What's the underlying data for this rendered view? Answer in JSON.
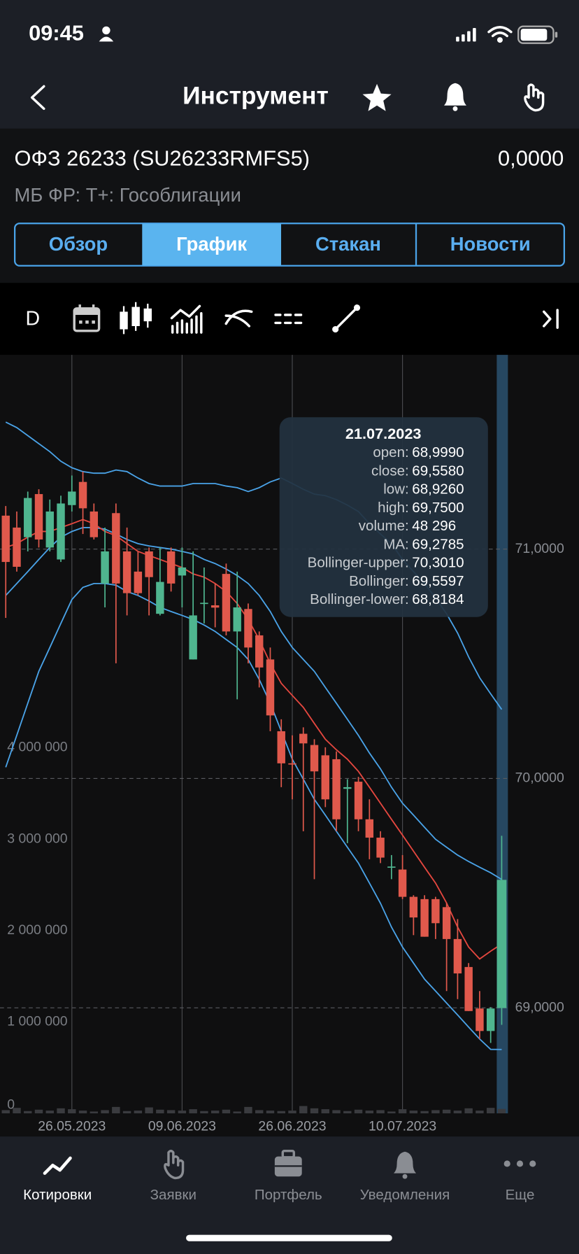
{
  "status_bar": {
    "time": "09:45"
  },
  "header": {
    "title": "Инструмент"
  },
  "instrument": {
    "name": "ОФЗ 26233 (SU26233RMFS5)",
    "price": "0,0000",
    "market": "МБ ФР: Т+: Гособлигации"
  },
  "tabs": [
    "Обзор",
    "График",
    "Стакан",
    "Новости"
  ],
  "toolbar": {
    "period": "D"
  },
  "tooltip": {
    "date": "21.07.2023",
    "rows": [
      {
        "label": "open:",
        "value": "68,9990"
      },
      {
        "label": "close:",
        "value": "69,5580"
      },
      {
        "label": "low:",
        "value": "68,9260"
      },
      {
        "label": "high:",
        "value": "69,7500"
      },
      {
        "label": "volume:",
        "value": "48 296"
      },
      {
        "label": "MA:",
        "value": "69,2785"
      },
      {
        "label": "Bollinger-upper:",
        "value": "70,3010"
      },
      {
        "label": "Bollinger:",
        "value": "69,5597"
      },
      {
        "label": "Bollinger-lower:",
        "value": "68,8184"
      }
    ]
  },
  "chart_data": {
    "type": "candlestick",
    "categories": [
      null,
      null,
      null,
      null,
      null,
      null,
      "26.05.2023",
      null,
      null,
      null,
      null,
      null,
      null,
      null,
      null,
      null,
      "09.06.2023",
      null,
      null,
      null,
      null,
      null,
      null,
      null,
      null,
      null,
      "26.06.2023",
      null,
      null,
      null,
      null,
      null,
      null,
      null,
      null,
      null,
      "10.07.2023",
      null,
      null,
      null,
      null,
      null,
      null,
      null,
      null,
      null
    ],
    "open": [
      71.146,
      71.094,
      71.052,
      71.24,
      71.007,
      70.955,
      71.192,
      71.293,
      71.164,
      70.85,
      71.157,
      70.99,
      70.902,
      70.99,
      70.718,
      70.99,
      70.885,
      70.519,
      70.763,
      70.755,
      70.892,
      70.641,
      70.739,
      70.624,
      70.519,
      70.206,
      70.066,
      70.195,
      70.146,
      70.101,
      70.084,
      69.955,
      69.986,
      69.822,
      69.742,
      69.613,
      69.603,
      69.484,
      69.474,
      69.474,
      69.439,
      69.3,
      69.178,
      68.997,
      68.899,
      68.999
    ],
    "high": [
      71.188,
      71.164,
      71.251,
      71.261,
      71.216,
      71.233,
      71.321,
      71.338,
      71.199,
      71.094,
      71.199,
      71.094,
      70.99,
      71.007,
      71.007,
      71.007,
      71.007,
      70.99,
      70.92,
      70.85,
      70.937,
      70.902,
      70.763,
      70.641,
      70.571,
      70.258,
      70.188,
      70.223,
      70.171,
      70.136,
      70.118,
      69.997,
      70.007,
      69.909,
      69.77,
      69.666,
      69.666,
      69.491,
      69.491,
      69.484,
      69.457,
      69.387,
      69.195,
      69.073,
      69.003,
      69.75
    ],
    "low": [
      70.7,
      70.902,
      70.99,
      71.007,
      70.99,
      70.944,
      71.164,
      71.066,
      71.042,
      70.746,
      70.502,
      70.711,
      70.798,
      70.711,
      70.711,
      70.815,
      70.746,
      70.519,
      70.676,
      70.659,
      70.624,
      70.345,
      70.502,
      70.397,
      70.206,
      69.962,
      69.909,
      69.77,
      69.561,
      69.875,
      69.77,
      69.718,
      69.77,
      69.648,
      69.631,
      69.561,
      69.474,
      69.317,
      69.31,
      69.3,
      69.073,
      69.038,
      68.986,
      68.864,
      68.847,
      68.926
    ],
    "close": [
      70.944,
      70.923,
      71.223,
      71.042,
      71.164,
      71.199,
      71.251,
      71.178,
      71.052,
      70.99,
      70.85,
      70.808,
      70.808,
      70.878,
      70.857,
      70.85,
      70.92,
      70.711,
      70.766,
      70.745,
      70.641,
      70.746,
      70.571,
      70.484,
      70.275,
      70.066,
      70.063,
      70.153,
      70.031,
      69.909,
      69.822,
      69.962,
      69.822,
      69.742,
      69.655,
      69.616,
      69.484,
      69.394,
      69.31,
      69.369,
      69.3,
      69.15,
      68.986,
      68.899,
      68.997,
      69.558
    ],
    "volume": [
      35000,
      60000,
      25000,
      40000,
      30000,
      55000,
      45000,
      30000,
      20000,
      35000,
      70000,
      25000,
      30000,
      65000,
      40000,
      35000,
      30000,
      45000,
      25000,
      30000,
      40000,
      20000,
      70000,
      35000,
      30000,
      25000,
      30000,
      80000,
      55000,
      45000,
      35000,
      25000,
      40000,
      30000,
      35000,
      20000,
      45000,
      30000,
      25000,
      35000,
      40000,
      30000,
      55000,
      30000,
      60000,
      48296
    ],
    "up_color": "#4fb58f",
    "down_color": "#e0594c",
    "volume_color": "#3a3b3f",
    "lines": [
      {
        "color": "#4aa3e8",
        "values": [
          71.554,
          71.53,
          71.495,
          71.46,
          71.425,
          71.383,
          71.355,
          71.338,
          71.331,
          71.331,
          71.345,
          71.338,
          71.31,
          71.286,
          71.275,
          71.275,
          71.275,
          71.286,
          71.286,
          71.286,
          71.275,
          71.268,
          71.251,
          71.268,
          71.293,
          71.31,
          71.286,
          71.261,
          71.24,
          71.233,
          71.216,
          71.192,
          71.164,
          71.111,
          71.066,
          71.024,
          70.955,
          70.902,
          70.85,
          70.787,
          70.718,
          70.634,
          70.53,
          70.439,
          70.369,
          70.301
        ]
      },
      {
        "color": "#4aa3e8",
        "values": [
          70.798,
          70.85,
          70.902,
          70.955,
          71.007,
          71.052,
          71.077,
          71.094,
          71.094,
          71.087,
          71.066,
          71.042,
          71.024,
          71.014,
          71.007,
          71.0,
          70.99,
          70.979,
          70.955,
          70.937,
          70.913,
          70.885,
          70.85,
          70.798,
          70.728,
          70.641,
          70.571,
          70.519,
          70.467,
          70.397,
          70.328,
          70.258,
          70.188,
          70.111,
          70.042,
          69.962,
          69.892,
          69.84,
          69.787,
          69.735,
          69.7,
          69.666,
          69.638,
          69.613,
          69.589,
          69.5597
        ]
      },
      {
        "color": "#4aa3e8",
        "values": [
          70.049,
          70.188,
          70.328,
          70.467,
          70.571,
          70.676,
          70.78,
          70.833,
          70.85,
          70.85,
          70.843,
          70.815,
          70.798,
          70.774,
          70.746,
          70.728,
          70.711,
          70.693,
          70.669,
          70.641,
          70.606,
          70.571,
          70.519,
          70.432,
          70.328,
          70.206,
          70.084,
          69.997,
          69.909,
          69.84,
          69.77,
          69.7,
          69.631,
          69.544,
          69.456,
          69.352,
          69.265,
          69.195,
          69.125,
          69.073,
          69.021,
          68.969,
          68.916,
          68.864,
          68.819,
          68.8184
        ]
      },
      {
        "color": "#e5473f",
        "values": [
          71.007,
          71.024,
          71.052,
          71.077,
          71.077,
          71.094,
          71.111,
          71.129,
          71.111,
          71.077,
          71.059,
          71.024,
          70.99,
          70.972,
          70.955,
          70.937,
          70.92,
          70.892,
          70.878,
          70.85,
          70.815,
          70.763,
          70.693,
          70.606,
          70.502,
          70.415,
          70.362,
          70.31,
          70.24,
          70.171,
          70.125,
          70.084,
          70.031,
          69.962,
          69.892,
          69.822,
          69.753,
          69.683,
          69.613,
          69.544,
          69.457,
          69.352,
          69.265,
          69.213,
          69.247,
          69.2785
        ]
      }
    ],
    "ylim": [
      68.54,
      71.847
    ],
    "yticks": [
      {
        "value": 69,
        "label": "69,0000"
      },
      {
        "value": 70,
        "label": "70,0000"
      },
      {
        "value": 71,
        "label": "71,0000"
      }
    ],
    "y2lim": [
      0,
      8300000
    ],
    "y2ticks": [
      0,
      {
        "value": 1000000,
        "label": "1 000 000"
      },
      {
        "value": 2000000,
        "label": "2 000 000"
      },
      {
        "value": 3000000,
        "label": "3 000 000"
      },
      {
        "value": 4000000,
        "label": "4 000 000"
      }
    ],
    "grid": true
  },
  "bottom_nav": [
    "Котировки",
    "Заявки",
    "Портфель",
    "Уведомления",
    "Еще"
  ]
}
